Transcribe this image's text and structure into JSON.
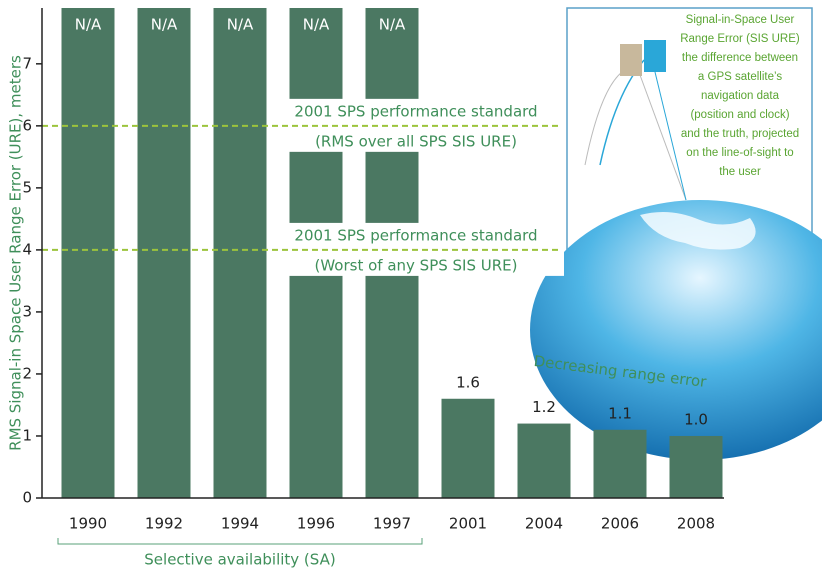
{
  "chart_data": {
    "type": "bar",
    "categories": [
      "1990",
      "1992",
      "1994",
      "1996",
      "1997",
      "2001",
      "2004",
      "2006",
      "2008"
    ],
    "values": [
      null,
      null,
      null,
      null,
      null,
      1.6,
      1.2,
      1.1,
      1.0
    ],
    "value_labels": [
      "N/A",
      "N/A",
      "N/A",
      "N/A",
      "N/A",
      "1.6",
      "1.2",
      "1.1",
      "1.0"
    ],
    "color": "#4b7862",
    "ylim": [
      0,
      7.9
    ],
    "yticks": [
      0,
      1,
      2,
      3,
      4,
      5,
      6,
      7
    ],
    "y_label": "RMS Signal-in Space User Range Error (URE), meters",
    "reference_lines": [
      {
        "value": 6,
        "color": "#9cc43c",
        "label": [
          "2001 SPS performance standard",
          "(RMS over all SPS SIS URE)"
        ]
      },
      {
        "value": 4,
        "color": "#9cc43c",
        "label": [
          "2001 SPS performance standard",
          "(Worst of any SPS SIS URE)"
        ]
      }
    ],
    "trend_annotation": "Decreasing range error",
    "bracket_label": "Selective availability (SA)"
  },
  "inset": {
    "text": [
      "Signal-in-Space User",
      "Range Error (SIS URE)",
      "the difference between",
      "a GPS satellite’s",
      "navigation data",
      "(position and clock)",
      "and the truth, projected",
      "on the line-of-sight to",
      "the user"
    ]
  }
}
